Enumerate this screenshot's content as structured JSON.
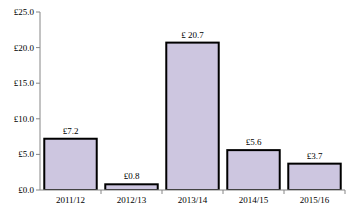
{
  "chart_data": {
    "type": "bar",
    "categories": [
      "2011/12",
      "2012/13",
      "2013/14",
      "2014/15",
      "2015/16"
    ],
    "values": [
      7.2,
      0.8,
      20.7,
      5.6,
      3.7
    ],
    "value_labels": [
      "£7.2",
      "£0.8",
      "£ 20.7",
      "£5.6",
      "£3.7"
    ],
    "color": "#cdc6e0",
    "ylim": [
      0,
      25
    ],
    "yticks": [
      {
        "value": 0,
        "label": "£0.0"
      },
      {
        "value": 5,
        "label": "£5.0"
      },
      {
        "value": 10,
        "label": "£10.0"
      },
      {
        "value": 15,
        "label": "£15.0"
      },
      {
        "value": 20,
        "label": "£20.0"
      },
      {
        "value": 25,
        "label": "£25.0"
      }
    ],
    "grid": false,
    "data_labels": true
  }
}
